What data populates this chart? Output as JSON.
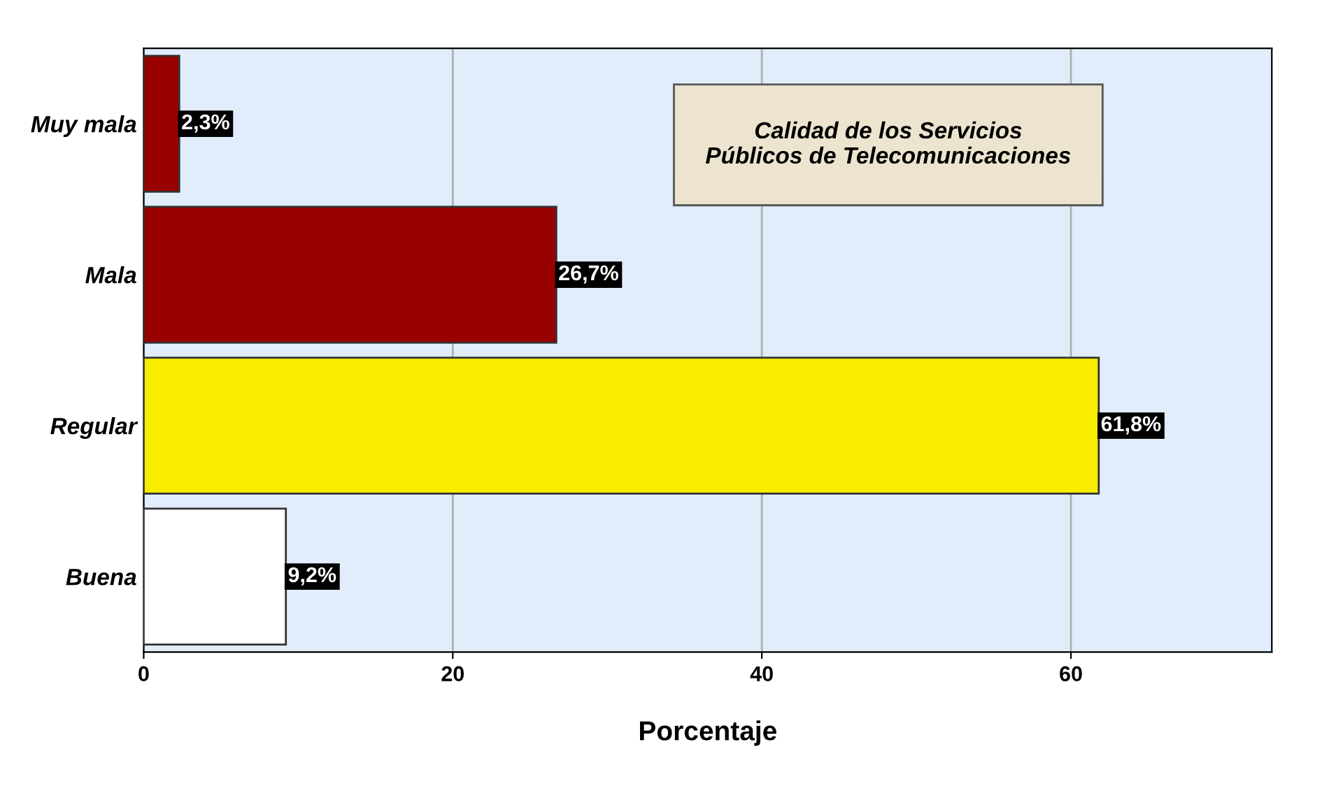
{
  "chart_data": {
    "type": "bar",
    "orientation": "horizontal",
    "title": "Calidad de los Servicios\nPúblicos de Telecomunicaciones",
    "xlabel": "Porcentaje",
    "categories": [
      "Muy mala",
      "Mala",
      "Regular",
      "Buena"
    ],
    "values": [
      2.3,
      26.7,
      61.8,
      9.2
    ],
    "colors": [
      "#990000",
      "#990000",
      "#f8ec00",
      "#ffffff"
    ],
    "value_labels": [
      "2,3%",
      "26,7%",
      "61,8%",
      "9,2%"
    ],
    "xlim": [
      0,
      73
    ],
    "xticks": [
      0,
      20,
      40,
      60
    ],
    "grid": "x"
  }
}
